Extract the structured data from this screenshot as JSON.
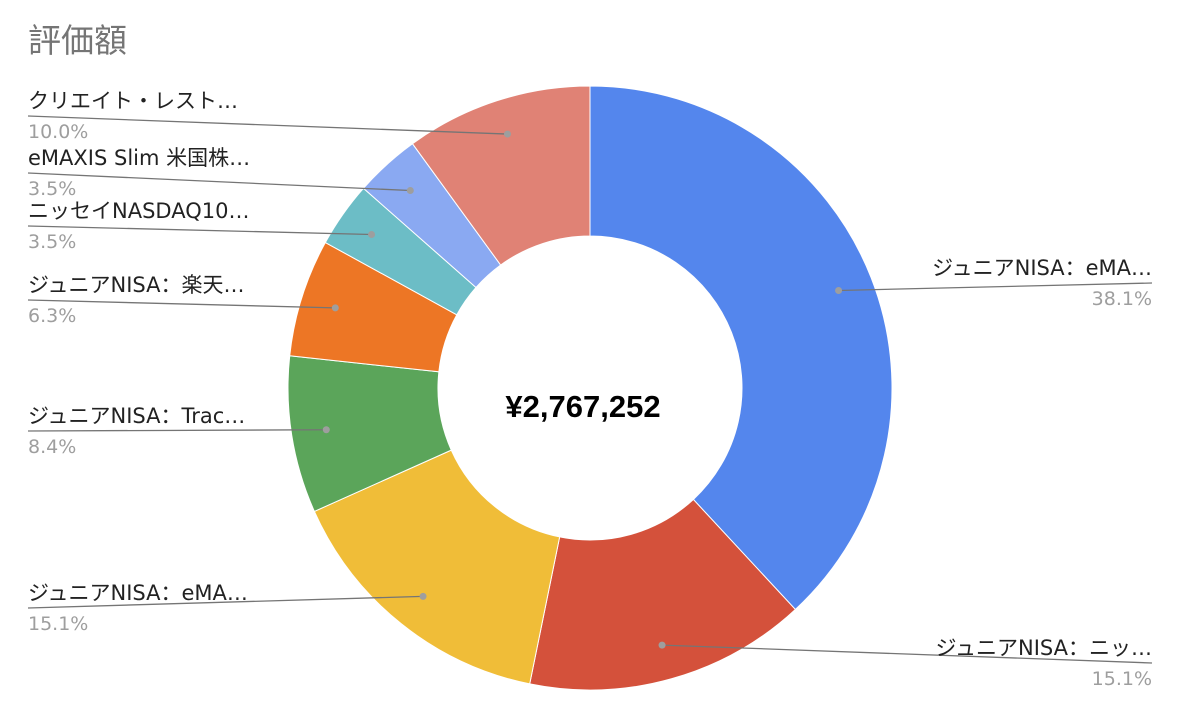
{
  "chart_data": {
    "type": "pie",
    "variant": "donut",
    "title": "評価額",
    "center_label": "¥2,767,252",
    "legend": "none",
    "slices": [
      {
        "label": "ジュニアNISA：eMA…",
        "value": 38.1,
        "pct_label": "38.1%",
        "color": "#5486ed"
      },
      {
        "label": "ジュニアNISA：ニッ…",
        "value": 15.1,
        "pct_label": "15.1%",
        "color": "#d4513b"
      },
      {
        "label": "ジュニアNISA：eMA…",
        "value": 15.1,
        "pct_label": "15.1%",
        "color": "#f0bd38"
      },
      {
        "label": "ジュニアNISA：Trac…",
        "value": 8.4,
        "pct_label": "8.4%",
        "color": "#5ba55a"
      },
      {
        "label": "ジュニアNISA：楽天…",
        "value": 6.3,
        "pct_label": "6.3%",
        "color": "#ed7625"
      },
      {
        "label": "ニッセイNASDAQ10…",
        "value": 3.5,
        "pct_label": "3.5%",
        "color": "#6cbdc6"
      },
      {
        "label": "eMAXIS Slim 米国株…",
        "value": 3.5,
        "pct_label": "3.5%",
        "color": "#8aa9f2"
      },
      {
        "label": "クリエイト・レスト…",
        "value": 10.0,
        "pct_label": "10.0%",
        "color": "#e08275"
      }
    ]
  }
}
